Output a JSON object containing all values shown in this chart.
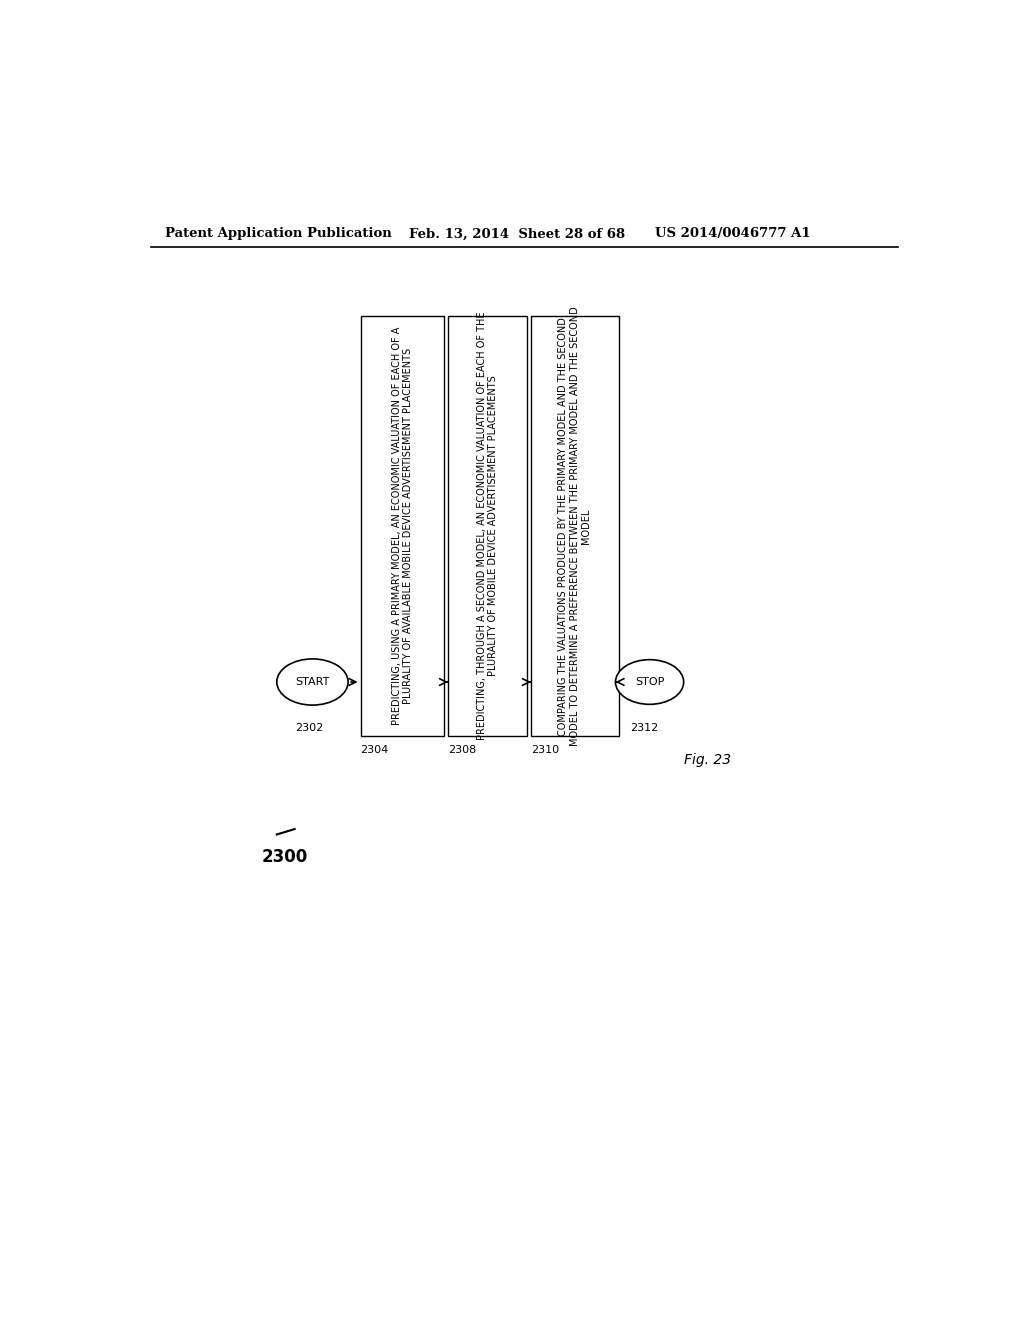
{
  "header_left": "Patent Application Publication",
  "header_mid": "Feb. 13, 2014  Sheet 28 of 68",
  "header_right": "US 2014/0046777 A1",
  "fig_label": "Fig. 23",
  "diagram_label": "2300",
  "start_label": "START",
  "start_id": "2302",
  "stop_label": "STOP",
  "stop_id": "2312",
  "boxes": [
    {
      "id": "2304",
      "text": "PREDICTING, USING A PRIMARY MODEL, AN ECONOMIC VALUATION OF EACH OF A\nPLURALITY OF AVAILABLE MOBILE DEVICE ADVERTISEMENT PLACEMENTS"
    },
    {
      "id": "2308",
      "text": "PREDICTING, THROUGH A SECOND MODEL, AN ECONOMIC VALUATION OF EACH OF THE\nPLURALITY OF MOBILE DEVICE ADVERTISEMENT PLACEMENTS"
    },
    {
      "id": "2310",
      "text": "COMPARING THE VALUATIONS PRODUCED BY THE PRIMARY MODEL AND THE SECOND\nMODEL TO DETERMINE A PREFERENCE BETWEEN THE PRIMARY MODEL AND THE SECOND\nMODEL"
    }
  ],
  "bg_color": "#ffffff",
  "text_color": "#000000",
  "font_size_header": 9.5,
  "font_size_box": 7.0,
  "font_size_label": 8,
  "font_size_fig": 10,
  "font_size_diagram_label": 12
}
